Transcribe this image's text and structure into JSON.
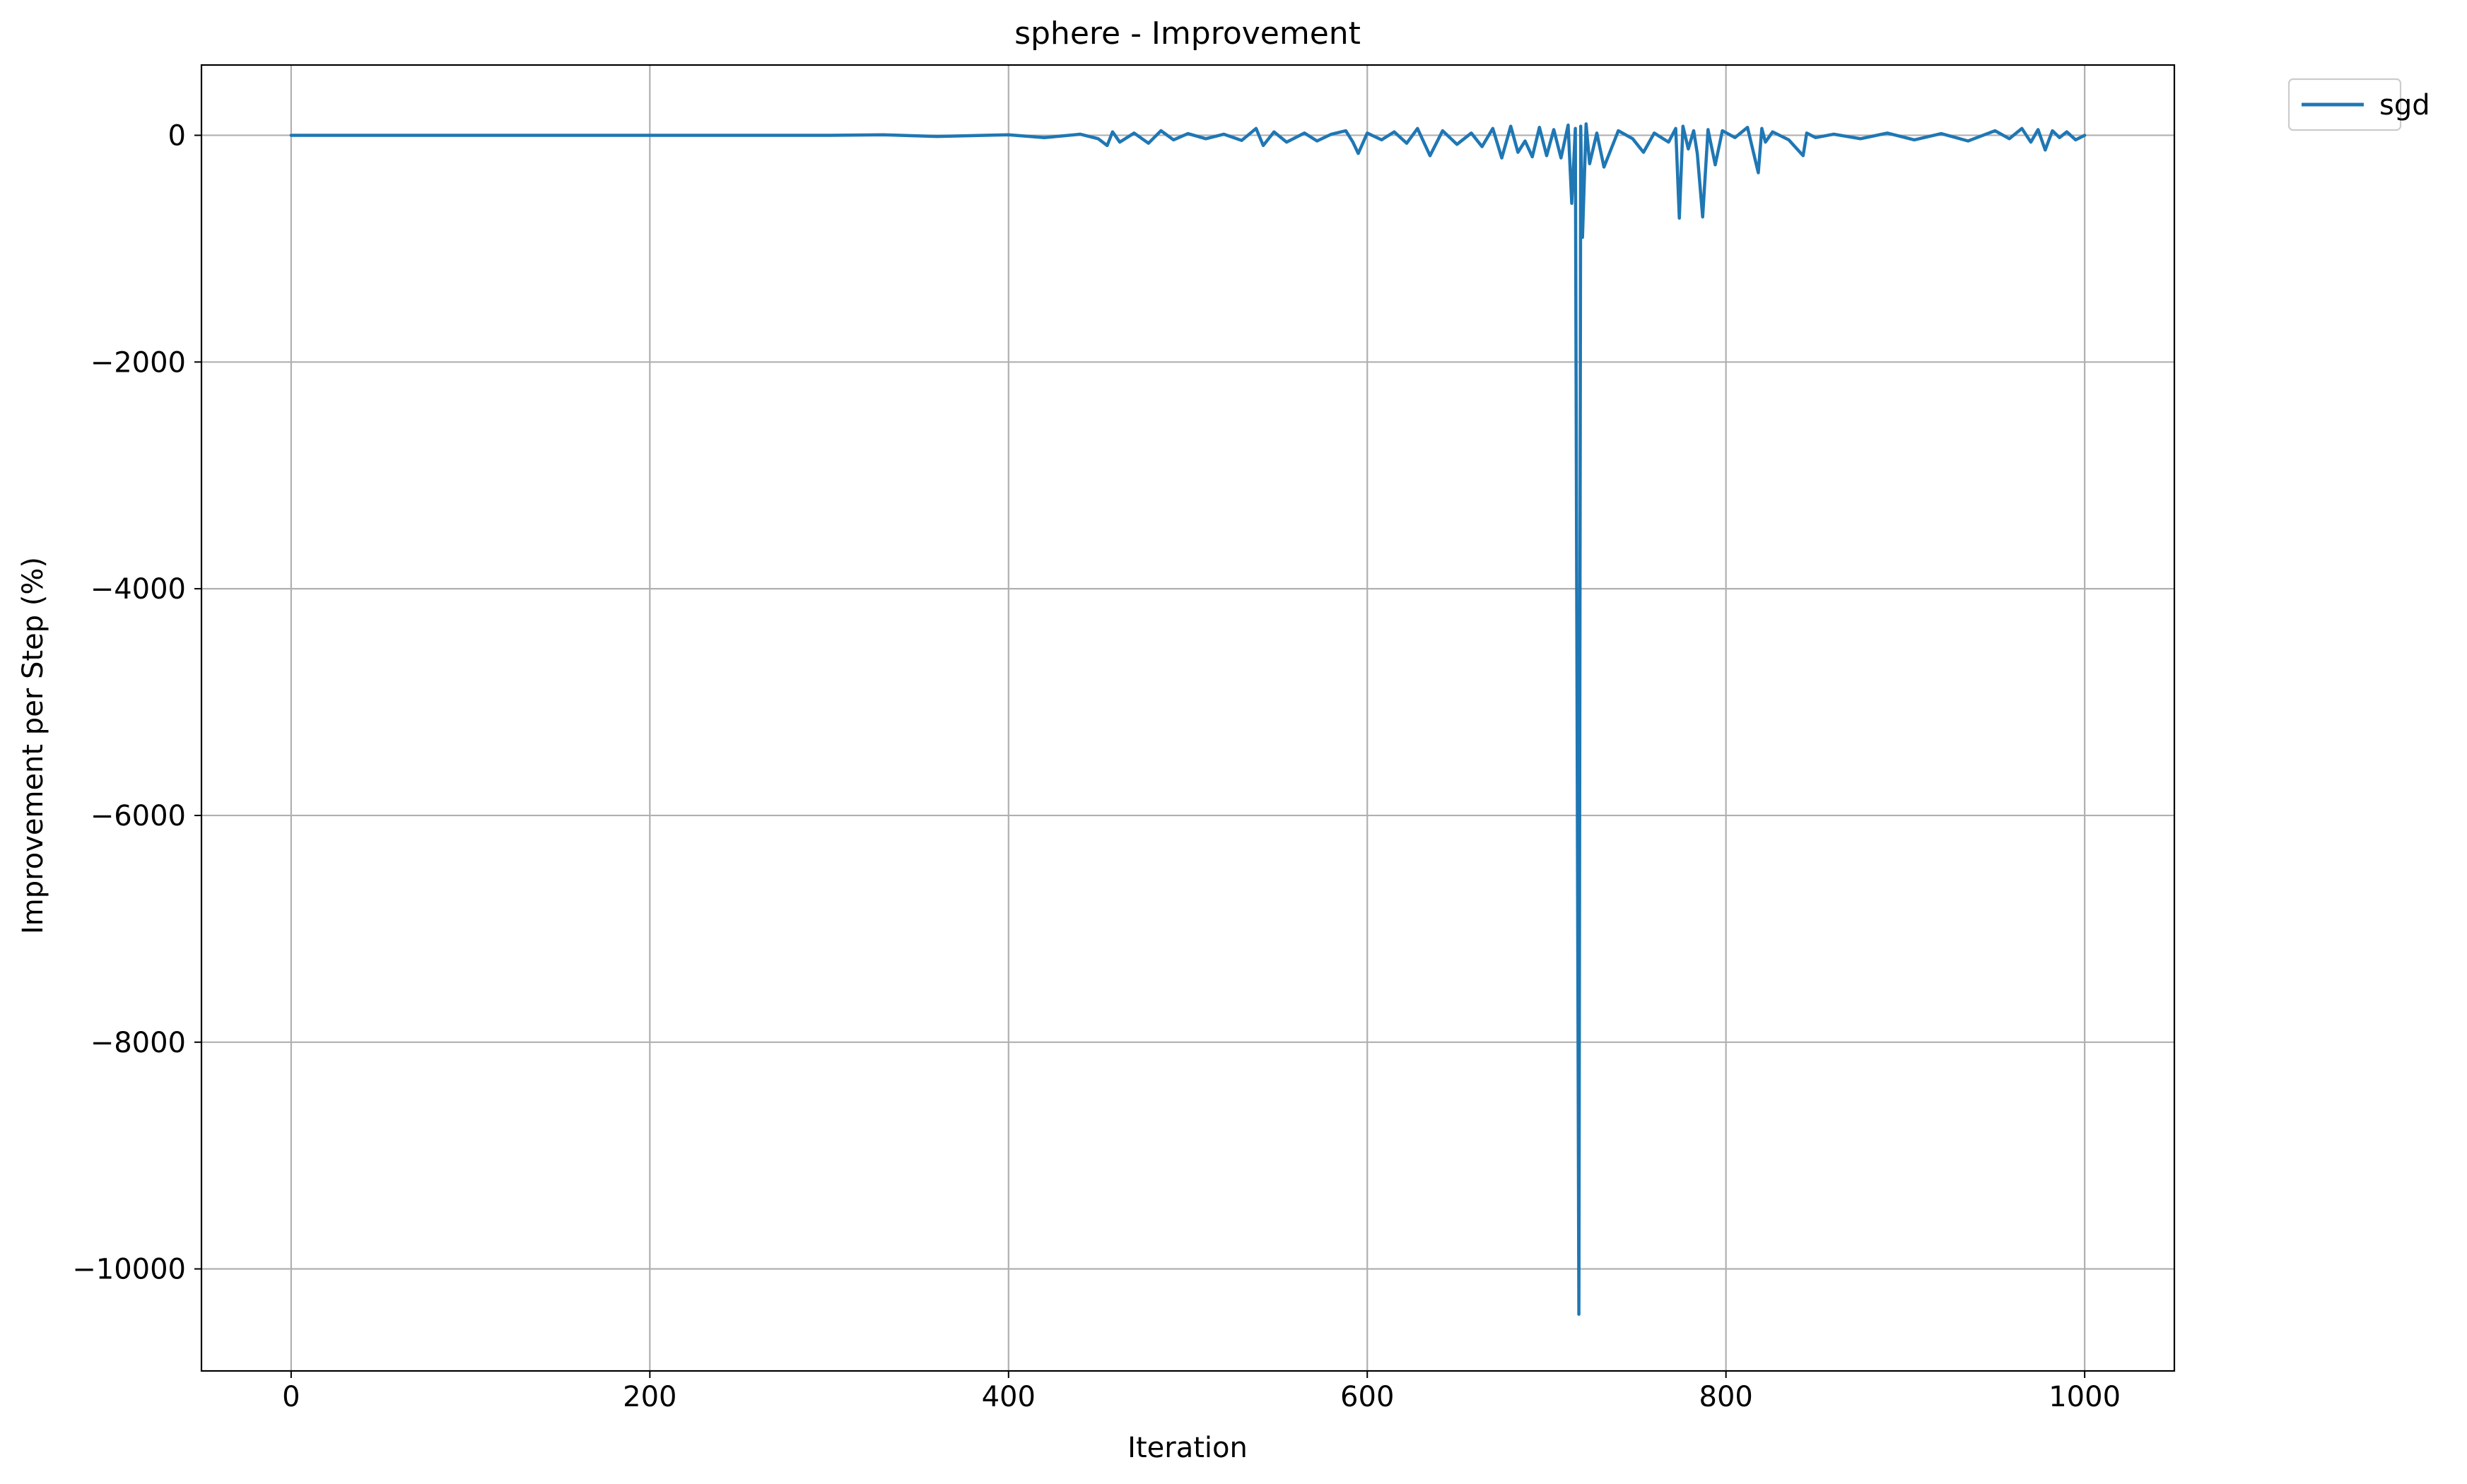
{
  "chart_data": {
    "type": "line",
    "title": "sphere - Improvement",
    "xlabel": "Iteration",
    "ylabel": "Improvement per Step (%)",
    "xlim": [
      -50,
      1050
    ],
    "ylim": [
      -10900,
      620
    ],
    "xticks": [
      0,
      200,
      400,
      600,
      800,
      1000
    ],
    "yticks": [
      0,
      -2000,
      -4000,
      -6000,
      -8000,
      -10000
    ],
    "xtick_labels": [
      "0",
      "200",
      "400",
      "600",
      "800",
      "1000"
    ],
    "ytick_labels": [
      "0",
      "−2000",
      "−4000",
      "−6000",
      "−8000",
      "−10000"
    ],
    "grid": true,
    "legend_position": "outside-top-right",
    "colors": {
      "sgd": "#1f77b4",
      "grid": "#b0b0b0"
    },
    "series": [
      {
        "name": "sgd",
        "x": [
          0,
          100,
          200,
          300,
          330,
          360,
          400,
          420,
          440,
          450,
          455,
          458,
          462,
          470,
          478,
          485,
          492,
          500,
          510,
          520,
          530,
          538,
          542,
          548,
          555,
          565,
          572,
          580,
          588,
          592,
          595,
          600,
          608,
          615,
          622,
          628,
          635,
          642,
          650,
          658,
          664,
          670,
          675,
          680,
          684,
          688,
          692,
          696,
          700,
          704,
          708,
          712,
          714,
          716,
          718,
          719,
          720,
          722,
          724,
          728,
          732,
          740,
          748,
          754,
          760,
          768,
          772,
          774,
          776,
          779,
          782,
          784,
          787,
          790,
          794,
          798,
          805,
          812,
          818,
          820,
          822,
          826,
          835,
          843,
          845,
          850,
          860,
          875,
          890,
          905,
          920,
          935,
          950,
          958,
          965,
          970,
          974,
          978,
          982,
          986,
          990,
          995,
          1000
        ],
        "y": [
          0,
          0,
          0,
          0,
          5,
          -10,
          5,
          -20,
          10,
          -30,
          -90,
          30,
          -60,
          20,
          -70,
          40,
          -40,
          15,
          -30,
          10,
          -45,
          60,
          -90,
          30,
          -60,
          20,
          -50,
          10,
          40,
          -60,
          -160,
          20,
          -40,
          30,
          -70,
          60,
          -180,
          40,
          -80,
          20,
          -100,
          60,
          -200,
          80,
          -150,
          -50,
          -190,
          70,
          -180,
          50,
          -200,
          90,
          -600,
          60,
          -10400,
          80,
          -900,
          100,
          -250,
          20,
          -280,
          40,
          -30,
          -150,
          20,
          -60,
          60,
          -730,
          80,
          -120,
          40,
          -160,
          -720,
          50,
          -260,
          40,
          -20,
          70,
          -330,
          60,
          -60,
          30,
          -40,
          -180,
          20,
          -20,
          10,
          -30,
          20,
          -40,
          15,
          -50,
          40,
          -30,
          60,
          -60,
          50,
          -130,
          40,
          -20,
          30,
          -40,
          0
        ]
      }
    ]
  }
}
